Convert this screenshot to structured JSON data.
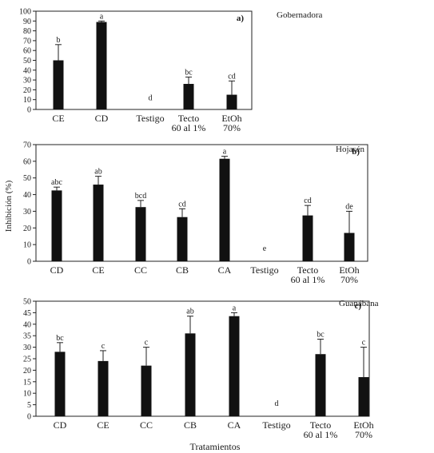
{
  "ylabel": "Inhibición (%)",
  "xlabel": "Tratamientos",
  "chart_data": [
    {
      "type": "bar",
      "panel": "a)",
      "title": "Gobernadora",
      "categories": [
        "CE",
        "CD",
        "Testigo",
        "Tecto\n60 al 1%",
        "EtOh\n70%"
      ],
      "values": [
        50,
        89,
        0,
        26,
        15
      ],
      "errors": [
        16,
        1,
        0,
        7,
        14
      ],
      "letters": [
        "b",
        "a",
        "d",
        "bc",
        "cd"
      ],
      "ylim": [
        0,
        100
      ],
      "yticks": [
        0,
        10,
        20,
        30,
        40,
        50,
        60,
        70,
        80,
        90,
        100
      ],
      "ytick_labels": [
        "0",
        "10",
        "20",
        "30",
        "40",
        "50",
        "60",
        "70",
        "80",
        "90",
        "100"
      ],
      "grid": false
    },
    {
      "type": "bar",
      "panel": "b)",
      "title": "Hojasén",
      "categories": [
        "CD",
        "CE",
        "CC",
        "CB",
        "CA",
        "Testigo",
        "Tecto\n60 al 1%",
        "EtOh\n70%"
      ],
      "values": [
        42.5,
        46,
        32.5,
        26.5,
        61.5,
        0,
        27.5,
        17
      ],
      "errors": [
        2,
        5,
        4,
        5,
        1.5,
        0,
        6,
        13
      ],
      "letters": [
        "abc",
        "ab",
        "bcd",
        "cd",
        "a",
        "e",
        "cd",
        "de"
      ],
      "ylim": [
        0,
        70
      ],
      "yticks": [
        0,
        10,
        20,
        30,
        40,
        50,
        60,
        70
      ],
      "ytick_labels": [
        "0",
        "10",
        "20",
        "30",
        "40",
        "50",
        "60",
        "70"
      ],
      "ylabel": "Inhibición (%)",
      "grid": false
    },
    {
      "type": "bar",
      "panel": "c)",
      "title": "Guanábana",
      "categories": [
        "CD",
        "CE",
        "CC",
        "CB",
        "CA",
        "Testigo",
        "Tecto\n60 al 1%",
        "EtOh\n70%"
      ],
      "values": [
        28,
        24,
        22,
        36,
        43.5,
        0,
        27,
        17
      ],
      "errors": [
        4,
        4.5,
        8,
        7.5,
        1.5,
        0,
        6.5,
        13
      ],
      "letters": [
        "bc",
        "c",
        "c",
        "ab",
        "a",
        "d",
        "bc",
        "c"
      ],
      "ylim": [
        0,
        50
      ],
      "yticks": [
        0,
        5,
        10,
        15,
        20,
        25,
        30,
        35,
        40,
        45,
        50
      ],
      "ytick_labels": [
        "0",
        "5",
        "10",
        "15",
        "20",
        "25",
        "30",
        "35",
        "40",
        "45",
        "50"
      ],
      "xlabel": "Tratamientos",
      "grid": false
    }
  ]
}
